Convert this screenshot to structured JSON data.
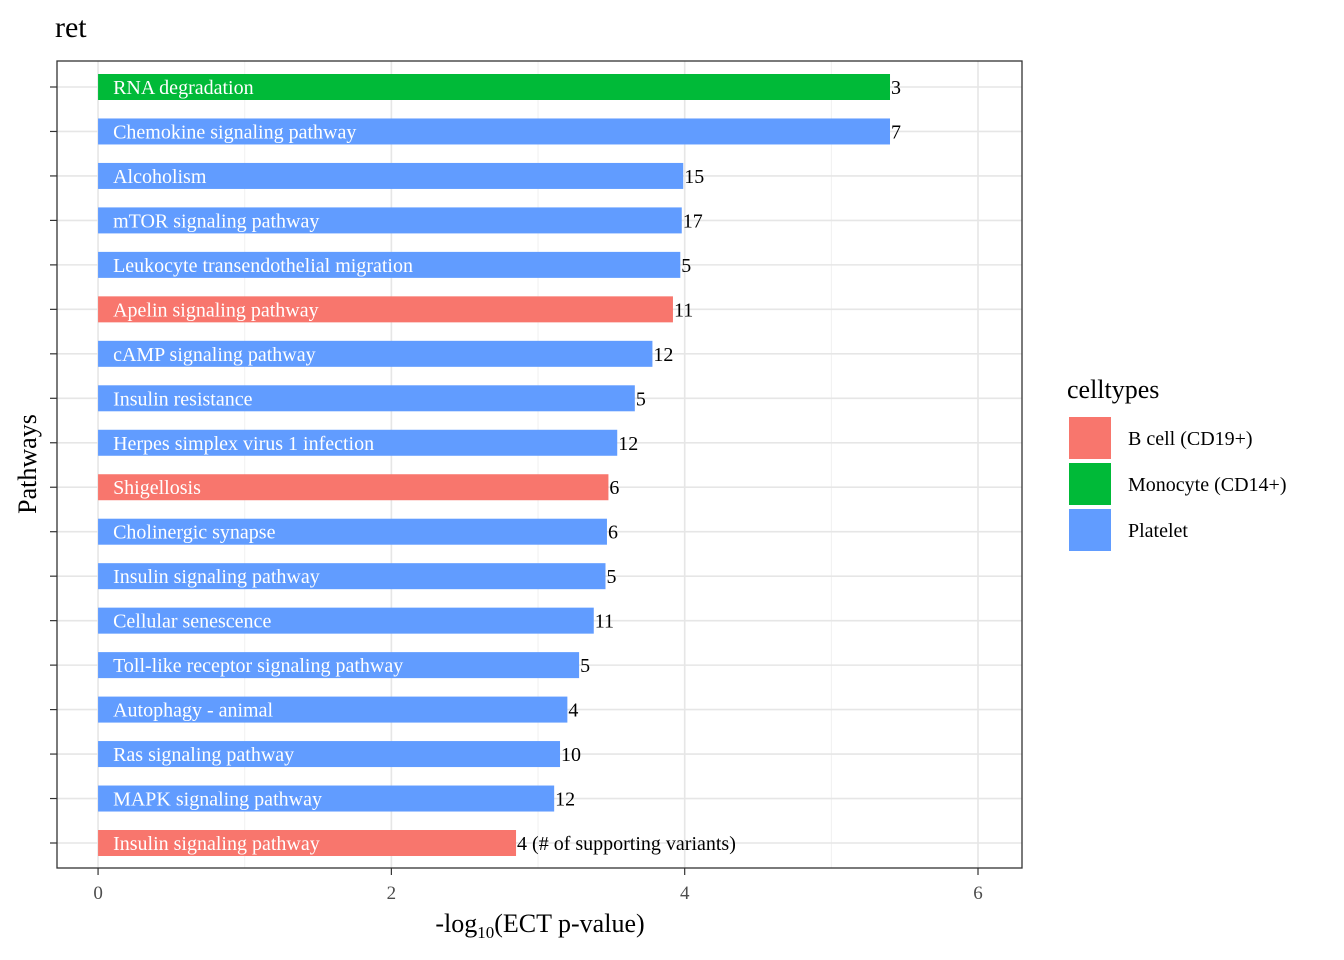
{
  "chart_data": {
    "type": "bar",
    "orientation": "horizontal",
    "title": "ret",
    "xlabel_main": "-log",
    "xlabel_sub": "10",
    "xlabel_rest": "(ECT p-value)",
    "ylabel": "Pathways",
    "xlim": [
      -0.28,
      6.3
    ],
    "xticks": [
      0,
      2,
      4,
      6
    ],
    "grid": true,
    "legend": {
      "title": "celltypes",
      "placement": "right",
      "entries": [
        {
          "label": "B cell (CD19+)",
          "color": "#F8766D"
        },
        {
          "label": "Monocyte (CD14+)",
          "color": "#00BA38"
        },
        {
          "label": "Platelet",
          "color": "#619CFF"
        }
      ]
    },
    "bars": [
      {
        "pathway": "RNA degradation",
        "value": 5.4,
        "count": "3",
        "celltype": "Monocyte (CD14+)"
      },
      {
        "pathway": "Chemokine signaling pathway",
        "value": 5.4,
        "count": "7",
        "celltype": "Platelet"
      },
      {
        "pathway": "Alcoholism",
        "value": 3.99,
        "count": "15",
        "celltype": "Platelet"
      },
      {
        "pathway": "mTOR signaling pathway",
        "value": 3.98,
        "count": "17",
        "celltype": "Platelet"
      },
      {
        "pathway": "Leukocyte transendothelial migration",
        "value": 3.97,
        "count": "5",
        "celltype": "Platelet"
      },
      {
        "pathway": "Apelin signaling pathway",
        "value": 3.92,
        "count": "11",
        "celltype": "B cell (CD19+)"
      },
      {
        "pathway": "cAMP signaling pathway",
        "value": 3.78,
        "count": "12",
        "celltype": "Platelet"
      },
      {
        "pathway": "Insulin resistance",
        "value": 3.66,
        "count": "5",
        "celltype": "Platelet"
      },
      {
        "pathway": "Herpes simplex virus 1 infection",
        "value": 3.54,
        "count": "12",
        "celltype": "Platelet"
      },
      {
        "pathway": "Shigellosis",
        "value": 3.48,
        "count": "6",
        "celltype": "B cell (CD19+)"
      },
      {
        "pathway": "Cholinergic synapse",
        "value": 3.47,
        "count": "6",
        "celltype": "Platelet"
      },
      {
        "pathway": "Insulin signaling pathway",
        "value": 3.46,
        "count": "5",
        "celltype": "Platelet"
      },
      {
        "pathway": "Cellular senescence",
        "value": 3.38,
        "count": "11",
        "celltype": "Platelet"
      },
      {
        "pathway": "Toll-like receptor signaling pathway",
        "value": 3.28,
        "count": "5",
        "celltype": "Platelet"
      },
      {
        "pathway": "Autophagy - animal",
        "value": 3.2,
        "count": "4",
        "celltype": "Platelet"
      },
      {
        "pathway": "Ras signaling pathway",
        "value": 3.15,
        "count": "10",
        "celltype": "Platelet"
      },
      {
        "pathway": "MAPK signaling pathway",
        "value": 3.11,
        "count": "12",
        "celltype": "Platelet"
      },
      {
        "pathway": "Insulin signaling pathway",
        "value": 2.85,
        "count": "4 (# of supporting variants)",
        "celltype": "B cell (CD19+)"
      }
    ]
  }
}
